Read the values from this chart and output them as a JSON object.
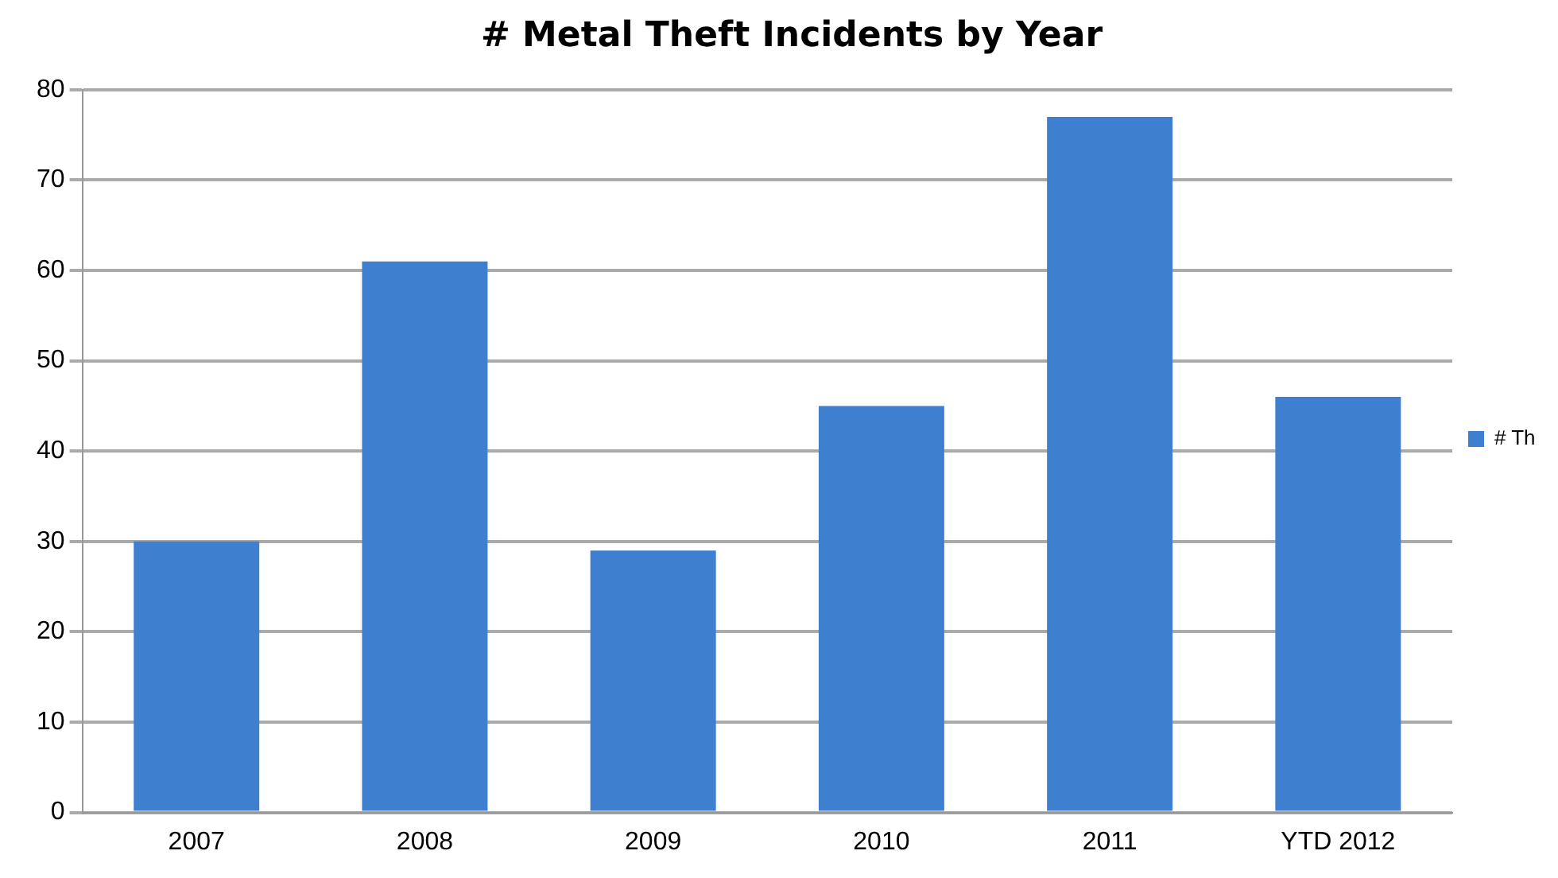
{
  "chart_data": {
    "type": "bar",
    "title": "# Metal Theft Incidents by Year",
    "categories": [
      "2007",
      "2008",
      "2009",
      "2010",
      "2011",
      "YTD 2012"
    ],
    "series": [
      {
        "name": "# Th",
        "color": "#3f7fd0",
        "values": [
          30,
          61,
          29,
          45,
          77,
          46
        ]
      }
    ],
    "ylim": [
      0,
      80
    ],
    "yticks": [
      0,
      10,
      20,
      30,
      40,
      50,
      60,
      70,
      80
    ],
    "grid": "y",
    "legend": "right"
  }
}
